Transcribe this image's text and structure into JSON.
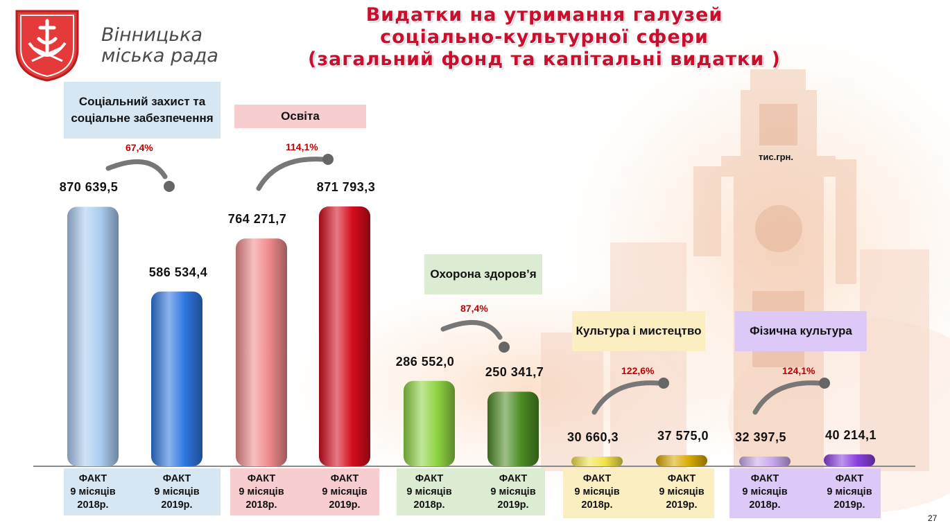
{
  "header": {
    "title_lines": [
      "Видатки на утримання галузей",
      "соціально-культурної сфери",
      "(загальний фонд та капітальні видатки )"
    ],
    "logo_text": [
      "Вінницька",
      "міська рада"
    ],
    "unit": "тис.грн.",
    "page_number": "27"
  },
  "colors": {
    "title": "#c8102e",
    "growth_label": "#c00000"
  },
  "chart_data": {
    "type": "bar",
    "x_label": "ФАКТ 9 місяців",
    "unit": "тис.грн.",
    "groups": [
      {
        "name": "Соціальний захист та соціальне забезпечення",
        "growth": "67,4%",
        "label_color": "#d6e6f3",
        "bars": [
          {
            "period": "2018р.",
            "value": 870639.5,
            "label": "870 639,5",
            "color": "#a9cbf0"
          },
          {
            "period": "2019р.",
            "value": 586534.4,
            "label": "586 534,4",
            "color": "#2f77e0"
          }
        ]
      },
      {
        "name": "Освіта",
        "growth": "114,1%",
        "label_color": "#f7cdd0",
        "bars": [
          {
            "period": "2018р.",
            "value": 764271.7,
            "label": "764 271,7",
            "color": "#f08a8c"
          },
          {
            "period": "2019р.",
            "value": 871793.3,
            "label": "871 793,3",
            "color": "#d40c1c"
          }
        ]
      },
      {
        "name": "Охорона здоров’я",
        "growth": "87,4%",
        "label_color": "#dcecd2",
        "bars": [
          {
            "period": "2018р.",
            "value": 286552.0,
            "label": "286 552,0",
            "color": "#8fd442"
          },
          {
            "period": "2019р.",
            "value": 250341.7,
            "label": "250 341,7",
            "color": "#4c8c24"
          }
        ]
      },
      {
        "name": "Культура і мистецтво",
        "growth": "122,6%",
        "label_color": "#fbefc2",
        "bars": [
          {
            "period": "2018р.",
            "value": 30660.3,
            "label": "30 660,3",
            "color": "#f3e34a"
          },
          {
            "period": "2019р.",
            "value": 37575.0,
            "label": "37 575,0",
            "color": "#d9a900"
          }
        ]
      },
      {
        "name": "Фізична культура",
        "growth": "124,1%",
        "label_color": "#ddc9f7",
        "bars": [
          {
            "period": "2018р.",
            "value": 32397.5,
            "label": "32 397,5",
            "color": "#c8a8ef"
          },
          {
            "period": "2019р.",
            "value": 40214.1,
            "label": "40 214,1",
            "color": "#8a3fe0"
          }
        ]
      }
    ]
  }
}
